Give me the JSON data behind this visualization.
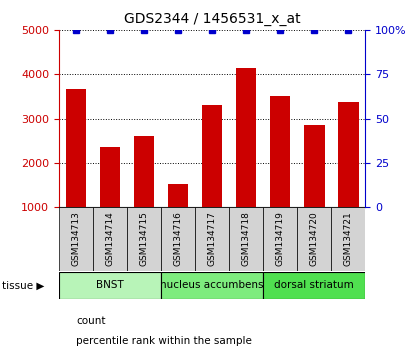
{
  "title": "GDS2344 / 1456531_x_at",
  "samples": [
    "GSM134713",
    "GSM134714",
    "GSM134715",
    "GSM134716",
    "GSM134717",
    "GSM134718",
    "GSM134719",
    "GSM134720",
    "GSM134721"
  ],
  "counts": [
    3680,
    2350,
    2600,
    1520,
    3300,
    4150,
    3500,
    2850,
    3370
  ],
  "percentile_ranks": [
    100,
    100,
    100,
    100,
    100,
    100,
    100,
    100,
    100
  ],
  "ylim_left": [
    1000,
    5000
  ],
  "ylim_right": [
    0,
    100
  ],
  "yticks_left": [
    1000,
    2000,
    3000,
    4000,
    5000
  ],
  "yticks_right": [
    0,
    25,
    50,
    75,
    100
  ],
  "tissue_groups": [
    {
      "label": "BNST",
      "start": 0,
      "end": 3,
      "color": "#b8f4b8"
    },
    {
      "label": "nucleus accumbens",
      "start": 3,
      "end": 6,
      "color": "#7eec7e"
    },
    {
      "label": "dorsal striatum",
      "start": 6,
      "end": 9,
      "color": "#50e050"
    }
  ],
  "bar_color": "#cc0000",
  "percentile_color": "#0000cc",
  "bar_width": 0.6,
  "sample_bg_color": "#d3d3d3",
  "tissue_label": "tissue",
  "legend_count_label": "count",
  "legend_percentile_label": "percentile rank within the sample"
}
